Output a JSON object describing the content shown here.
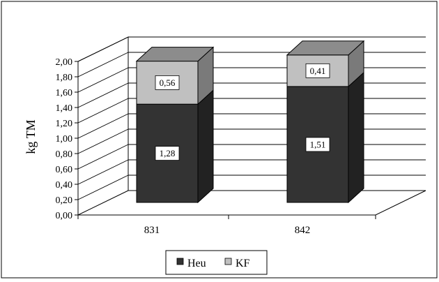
{
  "chart_data": {
    "type": "bar",
    "stacked": true,
    "three_d": true,
    "categories": [
      "831",
      "842"
    ],
    "series": [
      {
        "name": "Heu",
        "values": [
          1.28,
          1.51
        ],
        "value_labels": [
          "1,28",
          "1,51"
        ],
        "color": "#333333"
      },
      {
        "name": "KF",
        "values": [
          0.56,
          0.41
        ],
        "value_labels": [
          "0,56",
          "0,41"
        ],
        "color": "#c0c0c0"
      }
    ],
    "ylabel": "kg TM",
    "ylim": [
      0,
      2
    ],
    "yticks": [
      "0,00",
      "0,20",
      "0,40",
      "0,60",
      "0,80",
      "1,00",
      "1,20",
      "1,40",
      "1,60",
      "1,80",
      "2,00"
    ],
    "grid": true,
    "legend": "bottom"
  }
}
